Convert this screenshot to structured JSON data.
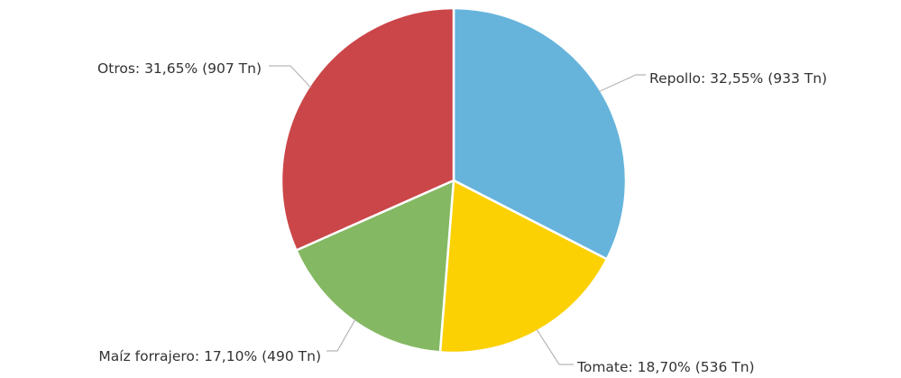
{
  "chart_data": {
    "type": "pie",
    "categories": [
      "Repollo",
      "Tomate",
      "Maíz forrajero",
      "Otros"
    ],
    "values": [
      933,
      536,
      490,
      907
    ],
    "percentages": [
      32.55,
      18.7,
      17.1,
      31.65
    ],
    "unit": "Tn",
    "colors": [
      "#66b4dc",
      "#fbd104",
      "#84b863",
      "#cb4649"
    ],
    "labels": [
      "Repollo: 32,55% (933 Tn)",
      "Tomate: 18,70% (536 Tn)",
      "Maíz forrajero: 17,10% (490 Tn)",
      "Otros: 31,65% (907 Tn)"
    ],
    "start_angle": "12 o'clock",
    "direction": "clockwise",
    "legend": "none"
  }
}
